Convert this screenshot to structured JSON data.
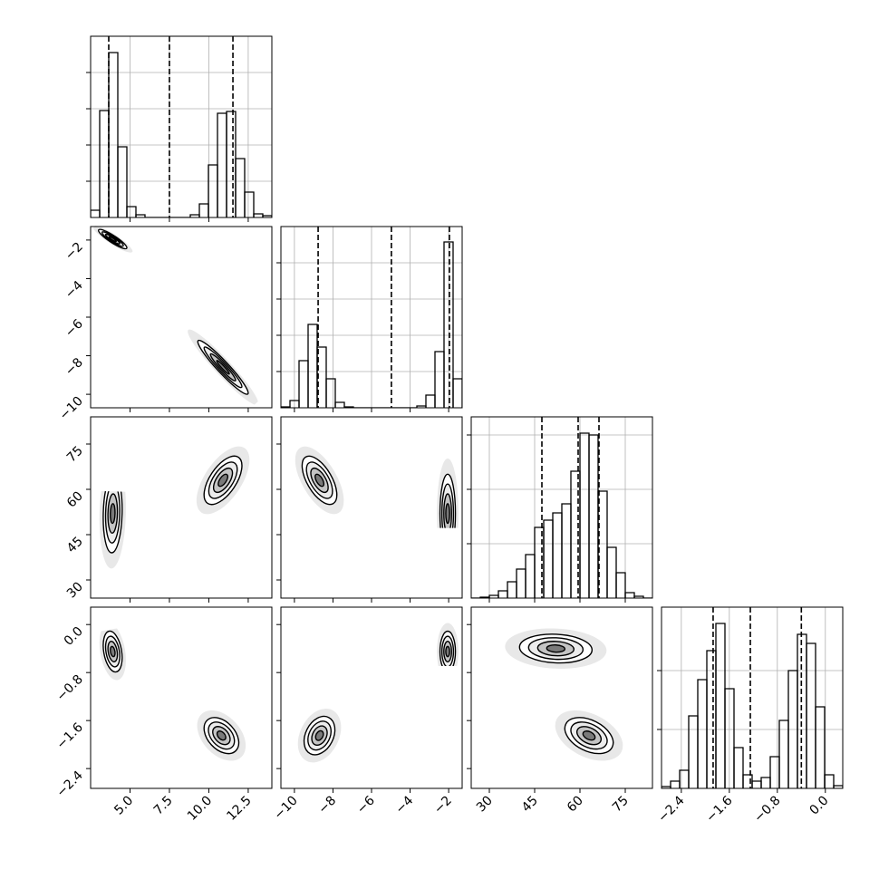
{
  "chart_data": {
    "type": "corner",
    "grid": true,
    "params": [
      {
        "lim": [
          2.5,
          14.0
        ],
        "ticks": [
          {
            "value": 5,
            "label": "5.0"
          },
          {
            "value": 7.5,
            "label": "7.5"
          },
          {
            "value": 10,
            "label": "10.0"
          },
          {
            "value": 12.5,
            "label": "12.5"
          }
        ],
        "hist": {
          "bins": [
            2.5,
            3.075,
            3.65,
            4.225,
            4.8,
            5.375,
            5.95,
            6.525,
            7.1,
            7.675,
            8.25,
            8.825,
            9.4,
            9.975,
            10.55,
            11.125,
            11.7,
            12.275,
            12.85,
            13.425,
            14.0
          ],
          "counts": [
            8,
            118,
            182,
            78,
            12,
            3,
            0,
            0,
            0,
            0,
            0,
            3,
            15,
            58,
            115,
            117,
            65,
            28,
            4,
            2
          ],
          "ylim": [
            0,
            200
          ],
          "yticks": [
            40,
            80,
            120,
            160
          ]
        },
        "quantiles": [
          3.65,
          7.5,
          11.53
        ]
      },
      {
        "lim": [
          -10.7,
          -1.3
        ],
        "ticks": [
          {
            "value": -10,
            "label": "−10"
          },
          {
            "value": -8,
            "label": "−8"
          },
          {
            "value": -6,
            "label": "−6"
          },
          {
            "value": -4,
            "label": "−4"
          },
          {
            "value": -2,
            "label": "−2"
          }
        ],
        "hist": {
          "bins": [
            -10.7,
            -10.23,
            -9.76,
            -9.29,
            -8.82,
            -8.35,
            -7.88,
            -7.41,
            -6.94,
            -6.47,
            -6.0,
            -5.53,
            -5.06,
            -4.59,
            -4.12,
            -3.65,
            -3.18,
            -2.71,
            -2.24,
            -1.77,
            -1.3
          ],
          "counts": [
            1,
            8,
            52,
            92,
            67,
            32,
            6,
            1,
            0,
            0,
            0,
            0,
            0,
            0,
            0,
            2,
            14,
            62,
            183,
            32
          ],
          "ylim": [
            0,
            200
          ],
          "yticks": [
            40,
            80,
            120,
            160
          ]
        },
        "quantiles": [
          -8.77,
          -4.97,
          -1.96
        ]
      },
      {
        "lim": [
          24,
          84
        ],
        "ticks": [
          30,
          45,
          60,
          75
        ],
        "hist": {
          "bins": [
            24,
            27,
            30,
            33,
            36,
            39,
            42,
            45,
            48,
            51,
            54,
            57,
            60,
            63,
            66,
            69,
            72,
            75,
            78,
            81,
            84
          ],
          "counts": [
            0,
            1,
            3,
            8,
            18,
            32,
            48,
            78,
            86,
            94,
            104,
            140,
            182,
            180,
            118,
            56,
            28,
            6,
            2,
            0
          ],
          "ylim": [
            0,
            200
          ],
          "yticks": [
            60,
            120,
            180
          ]
        },
        "quantiles": [
          47.4,
          59.4,
          66.3
        ]
      },
      {
        "lim": [
          -2.73,
          0.29
        ],
        "ticks": [
          {
            "value": -2.4,
            "label": "−2.4"
          },
          {
            "value": -1.6,
            "label": "−1.6"
          },
          {
            "value": -0.8,
            "label": "−0.8"
          },
          {
            "value": 0,
            "label": "0.0"
          }
        ],
        "hist": {
          "bins": [
            -2.73,
            -2.579,
            -2.428,
            -2.277,
            -2.126,
            -1.975,
            -1.824,
            -1.673,
            -1.522,
            -1.371,
            -1.22,
            -1.069,
            -0.918,
            -0.767,
            -0.616,
            -0.465,
            -0.314,
            -0.163,
            -0.012,
            0.139,
            0.29
          ],
          "counts": [
            2,
            8,
            20,
            80,
            120,
            152,
            182,
            110,
            45,
            15,
            8,
            12,
            35,
            75,
            130,
            170,
            160,
            90,
            15,
            3
          ],
          "ylim": [
            0,
            200
          ],
          "yticks": [
            65,
            130
          ]
        },
        "quantiles": [
          -1.87,
          -1.25,
          -0.4
        ]
      }
    ],
    "pairs": [
      {
        "x": 0,
        "y": 1,
        "clusters": [
          {
            "x": 3.9,
            "y": -1.95,
            "sx": 0.45,
            "sy": 0.25,
            "rho": -0.9
          },
          {
            "x": 10.9,
            "y": -8.6,
            "sx": 0.8,
            "sy": 0.7,
            "rho": -0.95
          }
        ]
      },
      {
        "x": 0,
        "y": 2,
        "clusters": [
          {
            "x": 3.9,
            "y": 52,
            "sx": 0.3,
            "sy": 6.5,
            "rho": 0.1
          },
          {
            "x": 10.9,
            "y": 63,
            "sx": 0.6,
            "sy": 4,
            "rho": 0.6
          }
        ]
      },
      {
        "x": 1,
        "y": 2,
        "clusters": [
          {
            "x": -2.05,
            "y": 52,
            "sx": 0.2,
            "sy": 6.5,
            "rho": 0
          },
          {
            "x": -8.7,
            "y": 63,
            "sx": 0.45,
            "sy": 4,
            "rho": -0.6
          }
        ]
      },
      {
        "x": 0,
        "y": 3,
        "clusters": [
          {
            "x": 3.9,
            "y": -0.45,
            "sx": 0.3,
            "sy": 0.17,
            "rho": -0.3
          },
          {
            "x": 10.8,
            "y": -1.85,
            "sx": 0.55,
            "sy": 0.15,
            "rho": -0.4
          }
        ]
      },
      {
        "x": 1,
        "y": 3,
        "clusters": [
          {
            "x": -2.05,
            "y": -0.45,
            "sx": 0.2,
            "sy": 0.17,
            "rho": 0
          },
          {
            "x": -8.7,
            "y": -1.85,
            "sx": 0.4,
            "sy": 0.16,
            "rho": 0.3
          }
        ]
      },
      {
        "x": 2,
        "y": 3,
        "clusters": [
          {
            "x": 52,
            "y": -0.4,
            "sx": 6,
            "sy": 0.12,
            "rho": -0.1
          },
          {
            "x": 63,
            "y": -1.85,
            "sx": 4,
            "sy": 0.15,
            "rho": -0.4
          }
        ]
      }
    ]
  }
}
